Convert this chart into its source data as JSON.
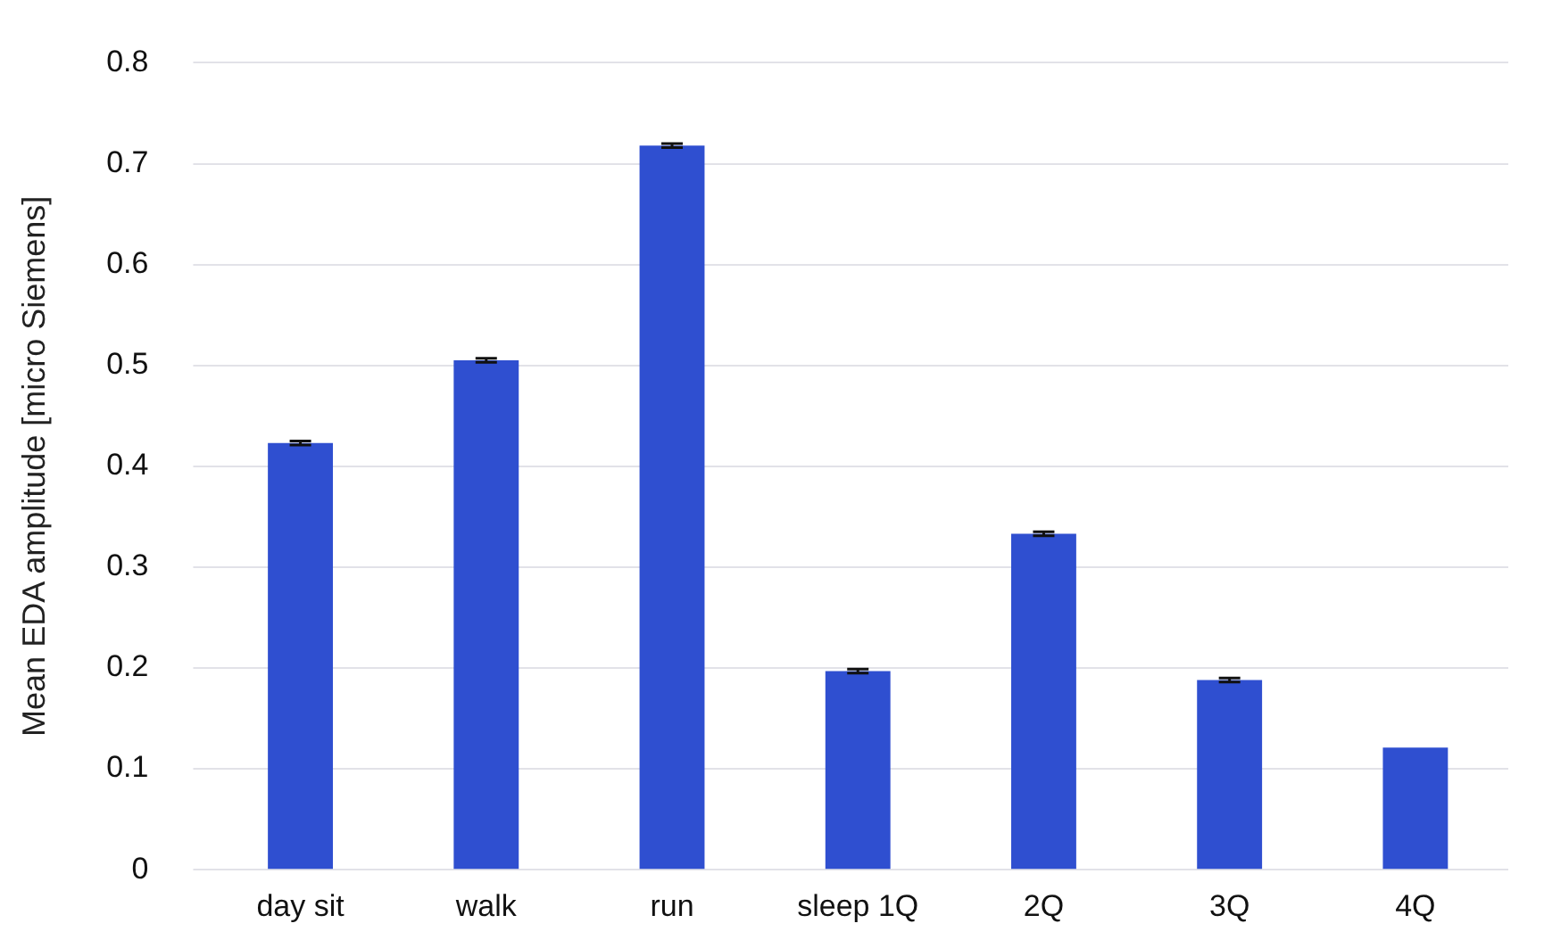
{
  "chart_data": {
    "type": "bar",
    "ylabel": "Mean EDA amplitude [micro Siemens]",
    "categories": [
      "day sit",
      "walk",
      "run",
      "sleep 1Q",
      "2Q",
      "3Q",
      "4Q"
    ],
    "values": [
      0.423,
      0.505,
      0.718,
      0.197,
      0.333,
      0.188,
      0.121
    ],
    "errors": [
      0.002,
      0.002,
      0.002,
      0.002,
      0.002,
      0.002,
      null
    ],
    "color": "#2f4fd0",
    "ylim": [
      0,
      0.8
    ],
    "yticks": [
      0,
      0.1,
      0.2,
      0.3,
      0.4,
      0.5,
      0.6,
      0.7,
      0.8
    ],
    "grid": "y"
  }
}
